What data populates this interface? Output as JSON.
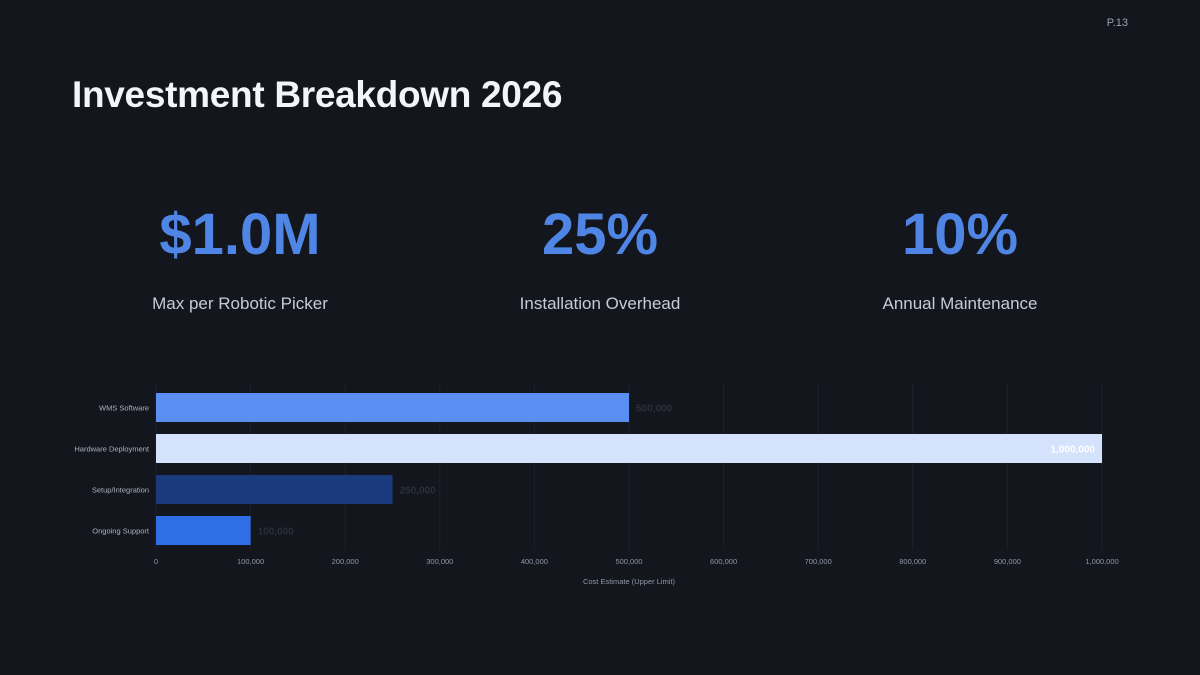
{
  "page": {
    "number": "P.13",
    "title": "Investment Breakdown 2026"
  },
  "metrics": [
    {
      "value": "$1.0M",
      "label": "Max per Robotic Picker"
    },
    {
      "value": "25%",
      "label": "Installation Overhead"
    },
    {
      "value": "10%",
      "label": "Annual Maintenance"
    }
  ],
  "colors": {
    "background": "#13161d",
    "accent": "#4f86e6"
  },
  "chart_data": {
    "type": "bar",
    "orientation": "horizontal",
    "categories": [
      "WMS Software",
      "Hardware Deployment",
      "Setup/Integration",
      "Ongoing Support"
    ],
    "values": [
      500000,
      1000000,
      250000,
      100000
    ],
    "value_labels": [
      "500,000",
      "1,000,000",
      "250,000",
      "100,000"
    ],
    "bar_colors": [
      "#5a8ef0",
      "#d4e2fc",
      "#1b3a7d",
      "#2f6fe6"
    ],
    "xlabel": "Cost Estimate (Upper Limit)",
    "ylabel": "",
    "xlim": [
      0,
      1000000
    ],
    "xticks": [
      0,
      100000,
      200000,
      300000,
      400000,
      500000,
      600000,
      700000,
      800000,
      900000,
      1000000
    ],
    "xtick_labels": [
      "0",
      "100,000",
      "200,000",
      "300,000",
      "400,000",
      "500,000",
      "600,000",
      "700,000",
      "800,000",
      "900,000",
      "1,000,000"
    ],
    "grid": "vertical",
    "legend": "none"
  }
}
